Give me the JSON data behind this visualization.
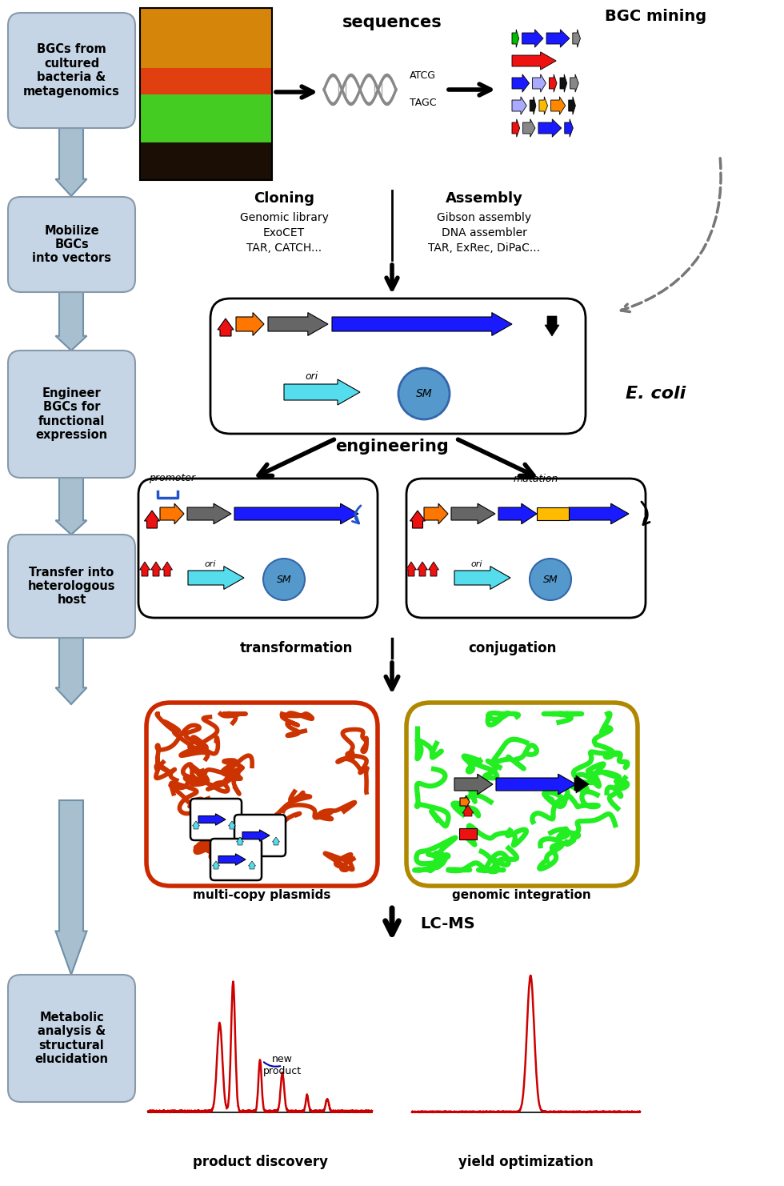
{
  "bg_color": "#ffffff",
  "box_color": "#c5d5e5",
  "box_edge_color": "#8899aa",
  "left_boxes": [
    {
      "label": "BGCs from\ncultured\nbacteria &\nmetagenomics"
    },
    {
      "label": "Mobilize\nBGCs\ninto vectors"
    },
    {
      "label": "Engineer\nBGCs for\nfunctional\nexpression"
    },
    {
      "label": "Transfer into\nheterologous\nhost"
    },
    {
      "label": "Metabolic\nanalysis &\nstructural\nelucidation"
    }
  ],
  "bgc_rows": [
    {
      "colors": [
        "#00bb00",
        "#1a1aff",
        "#1a1aff",
        "#888888"
      ],
      "lens": [
        0.018,
        0.055,
        0.06,
        0.02
      ]
    },
    {
      "colors": [
        "#ee1111"
      ],
      "lens": [
        0.115
      ]
    },
    {
      "colors": [
        "#1a1aff",
        "#aaaaff",
        "#ee1111",
        "#111111",
        "#888888"
      ],
      "lens": [
        0.045,
        0.035,
        0.02,
        0.018,
        0.022
      ]
    },
    {
      "colors": [
        "#aaaaff",
        "#111111",
        "#ffbb00",
        "#ff8800",
        "#111111"
      ],
      "lens": [
        0.038,
        0.016,
        0.022,
        0.038,
        0.018
      ]
    },
    {
      "colors": [
        "#ee1111",
        "#888888",
        "#1a1aff",
        "#1a1aff"
      ],
      "lens": [
        0.02,
        0.032,
        0.06,
        0.022
      ]
    }
  ]
}
